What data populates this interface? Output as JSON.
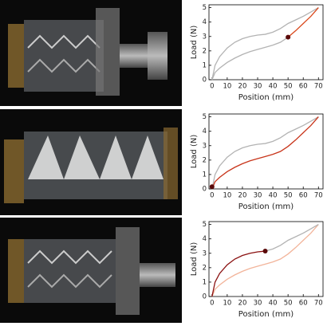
{
  "chart_data": [
    {
      "type": "line",
      "x_label": "Position (mm)",
      "y_label": "Load (N)",
      "x": [
        0,
        2,
        5,
        10,
        15,
        20,
        25,
        30,
        35,
        40,
        45,
        50,
        55,
        60,
        65,
        70
      ],
      "series": [
        {
          "color": "#b3b3b3",
          "values": [
            0,
            1.0,
            1.6,
            2.2,
            2.6,
            2.85,
            3.0,
            3.1,
            3.15,
            3.3,
            3.55,
            3.9,
            4.15,
            4.4,
            4.7,
            5.0
          ]
        },
        {
          "color": "#b3b3b3",
          "values": [
            0,
            0.5,
            0.8,
            1.2,
            1.5,
            1.75,
            1.95,
            2.1,
            2.25,
            2.4,
            2.6,
            2.95,
            null,
            null,
            null,
            null
          ]
        },
        {
          "color": "#d9481c",
          "values": [
            null,
            null,
            null,
            null,
            null,
            null,
            null,
            null,
            null,
            null,
            null,
            2.95,
            3.4,
            3.9,
            4.4,
            5.0
          ]
        }
      ],
      "marker": {
        "x": 50,
        "y": 2.95,
        "color": "#5a0a0a"
      },
      "xlim": [
        -2,
        73
      ],
      "ylim": [
        0,
        5.2
      ],
      "xticks": [
        0,
        10,
        20,
        30,
        40,
        50,
        60,
        70
      ],
      "yticks": [
        0,
        1,
        2,
        3,
        4,
        5
      ]
    },
    {
      "type": "line",
      "x_label": "Position (mm)",
      "y_label": "Load (N)",
      "x": [
        0,
        2,
        5,
        10,
        15,
        20,
        25,
        30,
        35,
        40,
        45,
        50,
        55,
        60,
        65,
        70
      ],
      "series": [
        {
          "color": "#b3b3b3",
          "values": [
            0,
            1.0,
            1.6,
            2.2,
            2.6,
            2.85,
            3.0,
            3.1,
            3.15,
            3.3,
            3.55,
            3.9,
            4.15,
            4.4,
            4.7,
            5.0
          ]
        },
        {
          "color": "#c8341a",
          "values": [
            0,
            0.5,
            0.8,
            1.2,
            1.5,
            1.75,
            1.95,
            2.1,
            2.25,
            2.4,
            2.6,
            2.95,
            3.4,
            3.9,
            4.4,
            5.0
          ]
        }
      ],
      "marker": {
        "x": 0,
        "y": 0.15,
        "color": "#5a0a0a"
      },
      "xlim": [
        -2,
        73
      ],
      "ylim": [
        0,
        5.2
      ],
      "xticks": [
        0,
        10,
        20,
        30,
        40,
        50,
        60,
        70
      ],
      "yticks": [
        0,
        1,
        2,
        3,
        4,
        5
      ]
    },
    {
      "type": "line",
      "x_label": "Position (mm)",
      "y_label": "Load (N)",
      "x": [
        0,
        2,
        5,
        10,
        15,
        20,
        25,
        30,
        35,
        40,
        45,
        50,
        55,
        60,
        65,
        70
      ],
      "series": [
        {
          "color": "#f2b49a",
          "values": [
            0,
            0.5,
            0.8,
            1.2,
            1.5,
            1.75,
            1.95,
            2.1,
            2.25,
            2.4,
            2.6,
            2.95,
            3.4,
            3.9,
            4.4,
            5.0
          ]
        },
        {
          "color": "#b3b3b3",
          "values": [
            null,
            null,
            null,
            null,
            null,
            null,
            null,
            null,
            3.15,
            3.3,
            3.55,
            3.9,
            4.15,
            4.4,
            4.7,
            5.0
          ]
        },
        {
          "color": "#8a1010",
          "values": [
            0,
            1.0,
            1.6,
            2.2,
            2.6,
            2.85,
            3.0,
            3.1,
            3.15,
            null,
            null,
            null,
            null,
            null,
            null,
            null
          ]
        }
      ],
      "marker": {
        "x": 35,
        "y": 3.15,
        "color": "#5a0a0a"
      },
      "xlim": [
        -2,
        73
      ],
      "ylim": [
        0,
        5.2
      ],
      "xticks": [
        0,
        10,
        20,
        30,
        40,
        50,
        60,
        70
      ],
      "yticks": [
        0,
        1,
        2,
        3,
        4,
        5
      ]
    }
  ]
}
